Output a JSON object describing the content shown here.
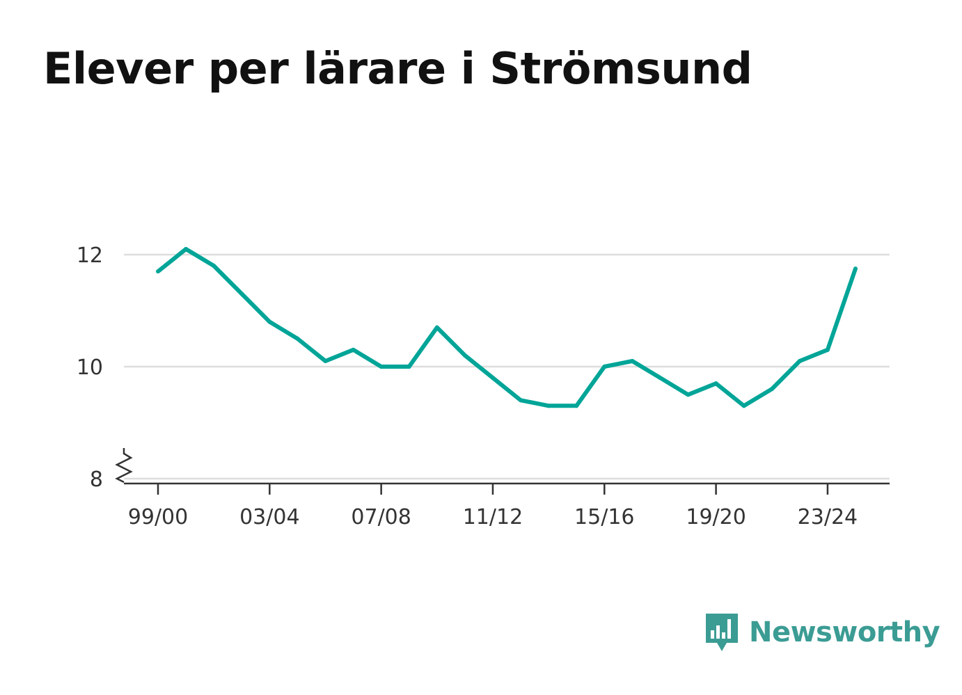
{
  "title": "Elever per lärare i Strömsund",
  "colors": {
    "line": "#00a598",
    "grid": "#dddddd",
    "axis": "#333333",
    "brand": "#3b9c94"
  },
  "brand": {
    "name": "Newsworthy",
    "icon": "bar-chart-speech-bubble-icon"
  },
  "chart_data": {
    "type": "line",
    "title": "Elever per lärare i Strömsund",
    "xlabel": "",
    "ylabel": "",
    "x": [
      "99/00",
      "00/01",
      "01/02",
      "02/03",
      "03/04",
      "04/05",
      "05/06",
      "06/07",
      "07/08",
      "08/09",
      "09/10",
      "10/11",
      "11/12",
      "12/13",
      "13/14",
      "14/15",
      "15/16",
      "16/17",
      "17/18",
      "18/19",
      "19/20",
      "20/21",
      "21/22",
      "22/23",
      "23/24",
      "24/25"
    ],
    "series": [
      {
        "values": [
          11.7,
          12.1,
          11.8,
          11.3,
          10.8,
          10.5,
          10.1,
          10.3,
          10.0,
          10.0,
          10.7,
          10.2,
          9.8,
          9.4,
          9.3,
          9.3,
          10.0,
          10.1,
          9.8,
          9.5,
          9.7,
          9.3,
          9.6,
          10.1,
          10.3,
          11.75
        ]
      }
    ],
    "x_tick_labels": [
      "99/00",
      "03/04",
      "07/08",
      "11/12",
      "15/16",
      "19/20",
      "23/24"
    ],
    "y_ticks": [
      8,
      10,
      12
    ],
    "ylim": [
      8,
      12
    ],
    "y_axis_break": true,
    "grid": true,
    "legend": "none"
  }
}
